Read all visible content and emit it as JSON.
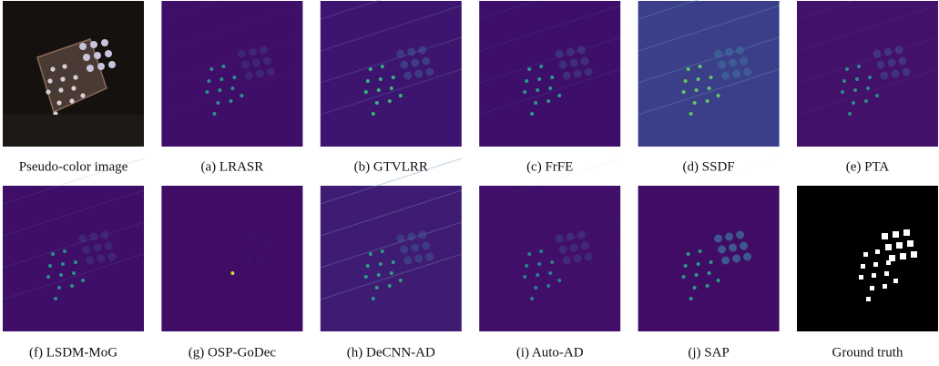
{
  "panels": [
    {
      "caption": "Pseudo-color image"
    },
    {
      "caption": "(a) LRASR"
    },
    {
      "caption": "(b) GTVLRR"
    },
    {
      "caption": "(c) FrFE"
    },
    {
      "caption": "(d) SSDF"
    },
    {
      "caption": "(e) PTA"
    },
    {
      "caption": "(f) LSDM-MoG"
    },
    {
      "caption": "(g) OSP-GoDec"
    },
    {
      "caption": "(h) DeCNN-AD"
    },
    {
      "caption": "(i) Auto-AD"
    },
    {
      "caption": "(j) SAP"
    },
    {
      "caption": "Ground truth"
    }
  ]
}
